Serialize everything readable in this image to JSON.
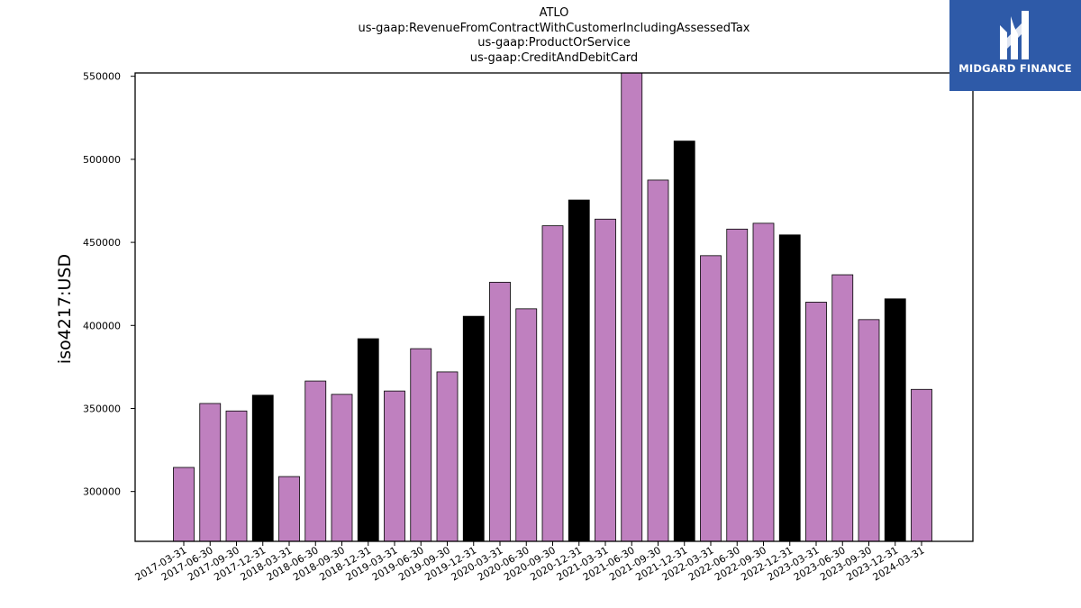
{
  "header": {
    "line1": "ATLO",
    "line2": "us-gaap:RevenueFromContractWithCustomerIncludingAssessedTax",
    "line3": "us-gaap:ProductOrService",
    "line4": "us-gaap:CreditAndDebitCard"
  },
  "logo": {
    "text": "MIDGARD FINANCE",
    "background": "#2e5aa8"
  },
  "colors": {
    "regular": "#bf80bf",
    "year_end": "#000000"
  },
  "chart_data": {
    "type": "bar",
    "ylabel": "iso4217:USD",
    "xlabel": "",
    "ylim": [
      270000,
      552000
    ],
    "yticks": [
      300000,
      350000,
      400000,
      450000,
      500000,
      550000
    ],
    "grid": false,
    "categories": [
      "2017-03-31",
      "2017-06-30",
      "2017-09-30",
      "2017-12-31",
      "2018-03-31",
      "2018-06-30",
      "2018-09-30",
      "2018-12-31",
      "2019-03-31",
      "2019-06-30",
      "2019-09-30",
      "2019-12-31",
      "2020-03-31",
      "2020-06-30",
      "2020-09-30",
      "2020-12-31",
      "2021-03-31",
      "2021-06-30",
      "2021-09-30",
      "2021-12-31",
      "2022-03-31",
      "2022-06-30",
      "2022-09-30",
      "2022-12-31",
      "2023-03-31",
      "2023-06-30",
      "2023-09-30",
      "2023-12-31",
      "2024-03-31"
    ],
    "values": [
      314500,
      353000,
      348500,
      358000,
      309000,
      366500,
      358500,
      392000,
      360500,
      386000,
      372000,
      405500,
      426000,
      410000,
      460000,
      475500,
      464000,
      556000,
      487500,
      511000,
      442000,
      458000,
      461500,
      454500,
      414000,
      430500,
      403500,
      416000,
      361500
    ],
    "highlighted": [
      false,
      false,
      false,
      true,
      false,
      false,
      false,
      true,
      false,
      false,
      false,
      true,
      false,
      false,
      false,
      true,
      false,
      false,
      false,
      true,
      false,
      false,
      false,
      true,
      false,
      false,
      false,
      true,
      false
    ]
  }
}
